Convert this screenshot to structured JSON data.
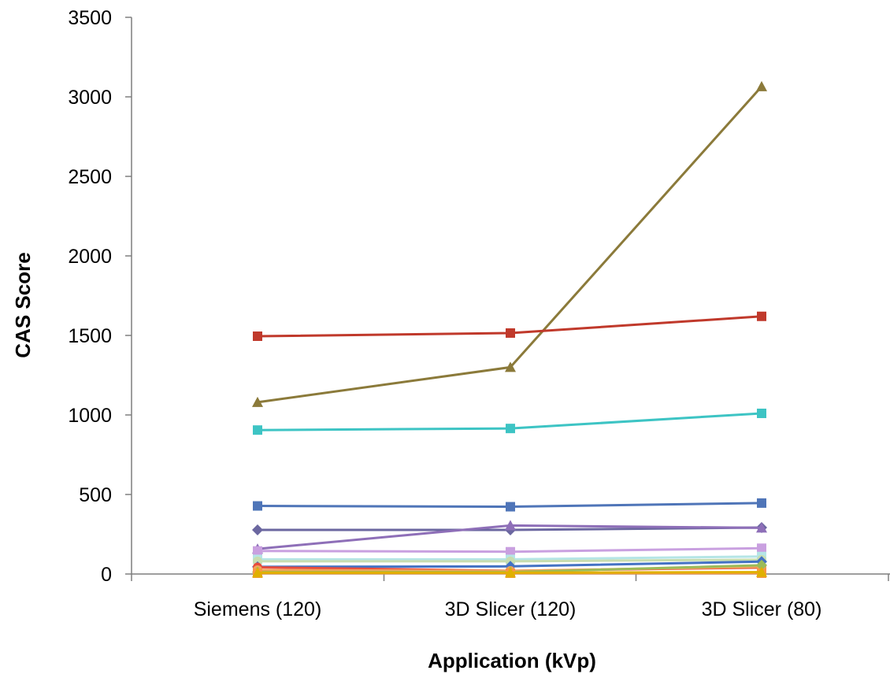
{
  "chart_data": {
    "type": "line",
    "categories": [
      "Siemens (120)",
      "3D Slicer (120)",
      "3D Slicer (80)"
    ],
    "xlabel": "Application (kVp)",
    "ylabel": "CAS Score",
    "ylim": [
      0,
      3500
    ],
    "yticks": [
      0,
      500,
      1000,
      1500,
      2000,
      2500,
      3000,
      3500
    ],
    "grid": false,
    "legend": "none",
    "series": [
      {
        "color": "#8B7A3A",
        "marker": "triangle",
        "values": [
          1080,
          1300,
          3065
        ]
      },
      {
        "color": "#C0392B",
        "marker": "square",
        "values": [
          1495,
          1515,
          1620
        ]
      },
      {
        "color": "#3DC4C4",
        "marker": "square",
        "values": [
          905,
          915,
          1010
        ]
      },
      {
        "color": "#4F75B8",
        "marker": "square",
        "values": [
          428,
          423,
          446
        ]
      },
      {
        "color": "#6B67A0",
        "marker": "diamond",
        "values": [
          277,
          277,
          292
        ]
      },
      {
        "color": "#8E6FB8",
        "marker": "triangle",
        "values": [
          158,
          305,
          290
        ]
      },
      {
        "color": "#C9A0E0",
        "marker": "square",
        "values": [
          145,
          140,
          162
        ]
      },
      {
        "color": "#B5E5E6",
        "marker": "square",
        "values": [
          92,
          92,
          110
        ]
      },
      {
        "color": "#C8DDB0",
        "marker": "circle",
        "values": [
          80,
          80,
          90
        ]
      },
      {
        "color": "#4472C4",
        "marker": "diamond",
        "values": [
          45,
          48,
          78
        ]
      },
      {
        "color": "#E74C3C",
        "marker": "circle",
        "values": [
          42,
          20,
          40
        ]
      },
      {
        "color": "#F2A35A",
        "marker": "circle",
        "values": [
          25,
          20,
          45
        ]
      },
      {
        "color": "#9BBB59",
        "marker": "diamond",
        "values": [
          12,
          12,
          55
        ]
      },
      {
        "color": "#F79646",
        "marker": "square",
        "values": [
          5,
          5,
          5
        ]
      },
      {
        "color": "#E0B000",
        "marker": "triangle",
        "values": [
          8,
          8,
          12
        ]
      }
    ]
  }
}
